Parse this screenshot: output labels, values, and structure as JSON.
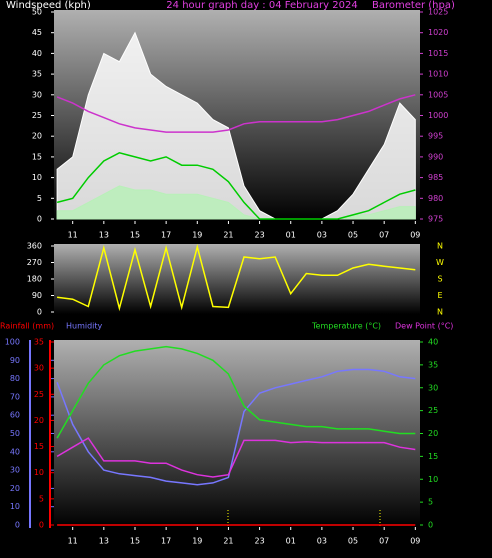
{
  "chart_data": [
    {
      "type": "line",
      "title": "24 hour graph day : 04 February 2024",
      "y_label": "Windspeed (kph)",
      "y2_label": "Barometer (hpa)",
      "x": [
        10,
        11,
        12,
        13,
        14,
        15,
        16,
        17,
        18,
        19,
        20,
        21,
        22,
        23,
        24,
        25,
        26,
        27,
        28,
        29,
        30,
        31,
        32,
        33
      ],
      "xlim": [
        9.8,
        33.3
      ],
      "xticks": [
        11,
        13,
        15,
        17,
        19,
        21,
        23,
        {
          "value": 25,
          "label": "01"
        },
        {
          "value": 27,
          "label": "03"
        },
        {
          "value": 29,
          "label": "05"
        },
        {
          "value": 31,
          "label": "07"
        },
        {
          "value": 33,
          "label": "09"
        }
      ],
      "ylim": [
        0,
        50
      ],
      "yticks": [
        0,
        5,
        10,
        15,
        20,
        25,
        30,
        35,
        40,
        45,
        50
      ],
      "y2lim": [
        975,
        1025
      ],
      "y2ticks": [
        975,
        980,
        985,
        990,
        995,
        1000,
        1005,
        1010,
        1015,
        1020,
        1025
      ],
      "series": [
        {
          "color": "#ffffff",
          "fill": true,
          "values": [
            12,
            15,
            30,
            40,
            38,
            45,
            35,
            32,
            30,
            28,
            24,
            22,
            8,
            2,
            0,
            0,
            0,
            0,
            2,
            6,
            12,
            18,
            28,
            24
          ]
        },
        {
          "color": "#b8f0b8",
          "fill": true,
          "values": [
            2,
            2,
            4,
            6,
            8,
            7,
            7,
            6,
            6,
            6,
            5,
            4,
            1,
            0,
            0,
            0,
            0,
            0,
            0,
            1,
            1,
            2,
            3,
            3
          ]
        },
        {
          "color": "#00cc00",
          "fill": false,
          "values": [
            4,
            5,
            10,
            14,
            16,
            15,
            14,
            15,
            13,
            13,
            12,
            9,
            4,
            0,
            0,
            0,
            0,
            0,
            0,
            1,
            2,
            4,
            6,
            7
          ]
        },
        {
          "color": "#cc33cc",
          "fill": false,
          "axis": "y2",
          "values": [
            1004.5,
            1003,
            1001,
            999.5,
            998,
            997,
            996.5,
            996,
            996,
            996,
            996,
            996.5,
            998,
            998.5,
            998.5,
            998.5,
            998.5,
            998.5,
            999,
            1000,
            1001,
            1002.5,
            1004,
            1005
          ]
        }
      ]
    },
    {
      "type": "line",
      "x": [
        10,
        11,
        12,
        13,
        14,
        15,
        16,
        17,
        18,
        19,
        20,
        21,
        22,
        23,
        24,
        25,
        26,
        27,
        28,
        29,
        30,
        31,
        32,
        33
      ],
      "xlim": [
        9.8,
        33.3
      ],
      "ylim": [
        0,
        360
      ],
      "yticks": [
        0,
        90,
        180,
        270,
        360
      ],
      "y2lim": [
        0,
        360
      ],
      "y2ticks": [
        {
          "value": 360,
          "label": "N"
        },
        {
          "value": 270,
          "label": "W"
        },
        {
          "value": 180,
          "label": "S"
        },
        {
          "value": 90,
          "label": "E"
        },
        {
          "value": 0,
          "label": "N"
        }
      ],
      "series": [
        {
          "color": "#ffff00",
          "fill": false,
          "values": [
            80,
            70,
            30,
            350,
            20,
            340,
            30,
            350,
            25,
            355,
            30,
            25,
            300,
            290,
            300,
            100,
            210,
            200,
            200,
            240,
            260,
            250,
            240,
            230
          ]
        }
      ]
    },
    {
      "type": "line",
      "x": [
        10,
        11,
        12,
        13,
        14,
        15,
        16,
        17,
        18,
        19,
        20,
        21,
        22,
        23,
        24,
        25,
        26,
        27,
        28,
        29,
        30,
        31,
        32,
        33
      ],
      "xlim": [
        9.8,
        33.3
      ],
      "xticks": [
        11,
        13,
        15,
        17,
        19,
        21,
        23,
        {
          "value": 25,
          "label": "01"
        },
        {
          "value": 27,
          "label": "03"
        },
        {
          "value": 29,
          "label": "05"
        },
        {
          "value": 31,
          "label": "07"
        },
        {
          "value": 33,
          "label": "09"
        }
      ],
      "ylim": [
        0,
        100
      ],
      "yticks": [
        0,
        10,
        20,
        30,
        40,
        50,
        60,
        70,
        80,
        90,
        100
      ],
      "y3lim": [
        0,
        35
      ],
      "y3ticks": [
        0,
        5,
        10,
        15,
        20,
        25,
        30,
        35
      ],
      "y2lim": [
        0,
        40
      ],
      "y2ticks": [
        0,
        5,
        10,
        15,
        20,
        25,
        30,
        35,
        40
      ],
      "series": [
        {
          "name": "Rainfall (mm)",
          "color": "#ff0000",
          "fill": false,
          "axis": "y3",
          "values": [
            0,
            0,
            0,
            0,
            0,
            0,
            0,
            0,
            0,
            0,
            0,
            0,
            0,
            0,
            0,
            0,
            0,
            0,
            0,
            0,
            0,
            0,
            0,
            0
          ]
        },
        {
          "name": "Humidity",
          "color": "#7777ff",
          "fill": false,
          "values": [
            78,
            55,
            40,
            30,
            28,
            27,
            26,
            24,
            23,
            22,
            23,
            26,
            62,
            72,
            75,
            77,
            79,
            81,
            84,
            85,
            85,
            84,
            81,
            80
          ]
        },
        {
          "name": "Temperature (°C)",
          "color": "#22dd22",
          "fill": false,
          "axis": "y2",
          "values": [
            19,
            25,
            31,
            35,
            37,
            38,
            38.5,
            39,
            38.5,
            37.5,
            36,
            33,
            26,
            23,
            22.5,
            22,
            21.5,
            21.5,
            21,
            21,
            21,
            20.5,
            20,
            20
          ]
        },
        {
          "name": "Dew Point (°C)",
          "color": "#dd33dd",
          "fill": false,
          "axis": "y2",
          "values": [
            15,
            17,
            19,
            14,
            14,
            14,
            13.5,
            13.5,
            12,
            11,
            10.5,
            11,
            18.5,
            18.5,
            18.5,
            18,
            18.2,
            18,
            18,
            18,
            18,
            18,
            17,
            16.5
          ]
        }
      ]
    }
  ]
}
